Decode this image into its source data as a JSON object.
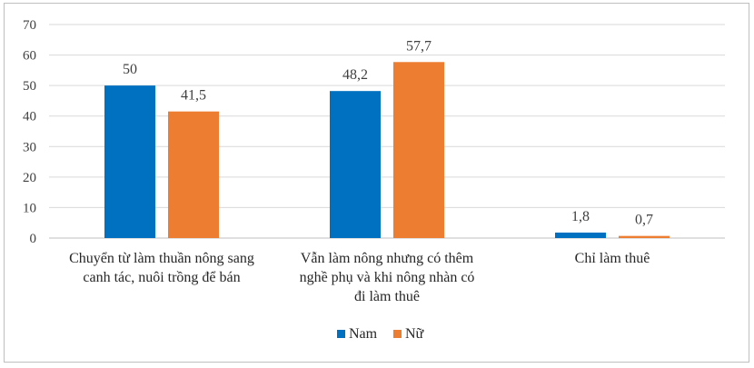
{
  "chart_data": {
    "type": "bar",
    "categories": [
      [
        "Chuyển từ làm thuần nông sang",
        "canh tác, nuôi trồng để bán"
      ],
      [
        "Vẫn làm nông nhưng có thêm",
        "nghề phụ và khi nông nhàn có",
        "đi làm thuê"
      ],
      [
        "Chỉ làm thuê"
      ]
    ],
    "series": [
      {
        "name": "Nam",
        "color": "#0070c0",
        "values": [
          50,
          48.2,
          1.8
        ],
        "labels": [
          "50",
          "48,2",
          "1,8"
        ]
      },
      {
        "name": "Nữ",
        "color": "#ed7d31",
        "values": [
          41.5,
          57.7,
          0.7
        ],
        "labels": [
          "41,5",
          "57,7",
          "0,7"
        ]
      }
    ],
    "ylim": [
      0,
      70
    ],
    "yticks": [
      0,
      10,
      20,
      30,
      40,
      50,
      60,
      70
    ],
    "grid": true,
    "legend": "bottom"
  }
}
